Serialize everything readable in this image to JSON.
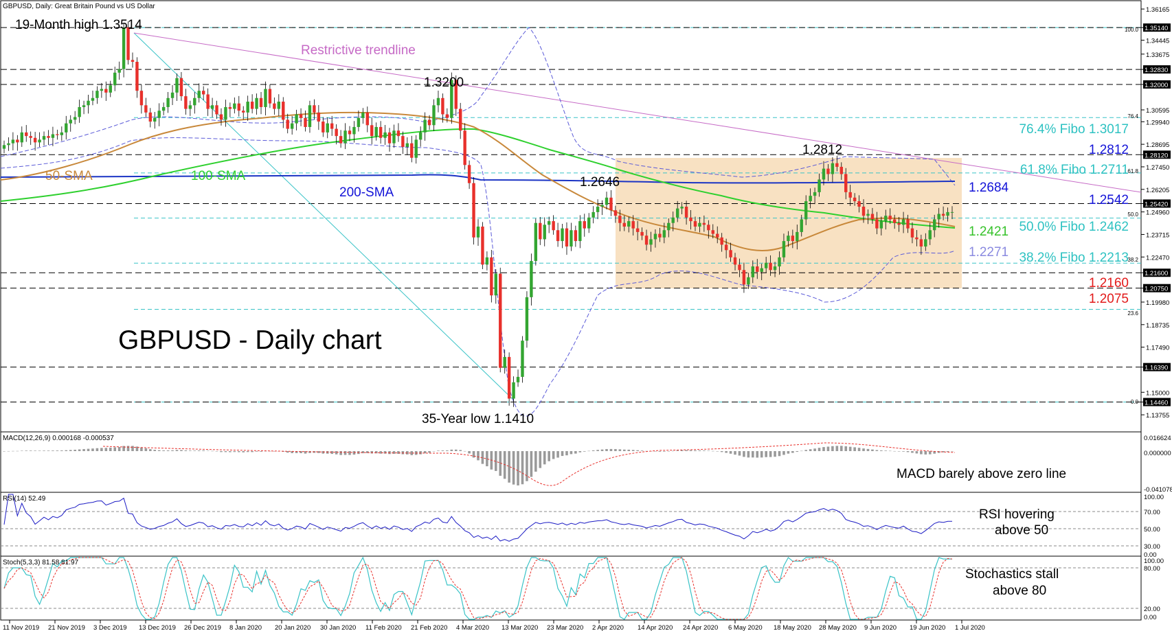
{
  "header": {
    "symbol_title": "GBPUSD, Daily:  Great Britain Pound vs US Dollar"
  },
  "main_title": "GBPUSD - Daily chart",
  "annotations": {
    "high": "19-Month high 1.3514",
    "low": "35-Year low 1.1410",
    "trendline": "Restrictive trendline",
    "peak_1320": "1.3200",
    "peak_12812": "1.2812",
    "peak_12646": "1.2646",
    "sma50": "50-SMA",
    "sma100": "100-SMA",
    "sma200": "200-SMA"
  },
  "right_labels": {
    "fib764": "76.4% Fibo 1.3017",
    "lvl12812": "1.2812",
    "fib618": "61.8% Fibo 1.2711",
    "lvl12684": "1.2684",
    "lvl12542": "1.2542",
    "lvl12421": "1.2421",
    "fib50": "50.0% Fibo 1.2462",
    "lvl12271": "1.2271",
    "fib382": "38.2% Fibo 1.2213",
    "lvl12160": "1.2160",
    "lvl12075": "1.2075"
  },
  "fib_small": {
    "f100": "100.0",
    "f764": "76.4",
    "f618": "61.8",
    "f50": "50.0",
    "f382": "38.2",
    "f236": "23.6",
    "f0": "0.0"
  },
  "price_axis": {
    "ticks": [
      "1.36165",
      "1.35140",
      "1.34445",
      "1.33675",
      "1.32830",
      "1.32000",
      "1.30595",
      "1.29940",
      "1.28695",
      "1.28120",
      "1.27450",
      "1.26205",
      "1.25420",
      "1.24960",
      "1.23715",
      "1.22470",
      "1.21600",
      "1.20750",
      "1.19980",
      "1.18735",
      "1.17490",
      "1.16390",
      "1.15000",
      "1.14460",
      "1.13755"
    ],
    "highlighted": [
      "1.35140",
      "1.32830",
      "1.32000",
      "1.28120",
      "1.25420",
      "1.21600",
      "1.20750",
      "1.16390",
      "1.14460"
    ]
  },
  "macd": {
    "header": "MACD(12,26,9) 0.000168 -0.000537",
    "axis_top": "0.016624",
    "axis_zero": "0.000000",
    "axis_bottom": "-0.041078",
    "note": "MACD barely above zero line"
  },
  "rsi": {
    "header": "RSI(14) 52.49",
    "axis": [
      "100.00",
      "70.00",
      "50.00",
      "30.00",
      "0.00"
    ],
    "note1": "RSI hovering",
    "note2": "above 50"
  },
  "stoch": {
    "header": "Stoch(5,3,3) 81.58 81.97",
    "axis": [
      "100.00",
      "80.00",
      "20.00",
      "0.00"
    ],
    "note1": "Stochastics stall",
    "note2": "above 80"
  },
  "date_axis": [
    "11 Nov 2019",
    "21 Nov 2019",
    "3 Dec 2019",
    "13 Dec 2019",
    "26 Dec 2019",
    "8 Jan 2020",
    "20 Jan 2020",
    "30 Jan 2020",
    "11 Feb 2020",
    "21 Feb 2020",
    "4 Mar 2020",
    "13 Mar 2020",
    "23 Mar 2020",
    "2 Apr 2020",
    "14 Apr 2020",
    "24 Apr 2020",
    "6 May 2020",
    "18 May 2020",
    "28 May 2020",
    "9 Jun 2020",
    "19 Jun 2020",
    "1 Jul 2020"
  ],
  "colors": {
    "up": "#33a531",
    "down": "#e8302b",
    "sma50": "#c8883a",
    "sma100": "#2ed02e",
    "sma200": "#1a33c4",
    "bollinger": "#5a5ad8",
    "trendline": "#c66ac6",
    "fib": "#39c3c7",
    "range_box": "#f6d7ad",
    "label_blue": "#1313d8",
    "label_red": "#e21a1a",
    "label_green": "#36c22a",
    "label_purple": "#8a8ae0",
    "label_cyan": "#2ec2c2"
  },
  "chart_data": {
    "type": "candlestick",
    "title": "GBPUSD, Daily:  Great Britain Pound vs US Dollar",
    "x_start": "11 Nov 2019",
    "x_end": "7 Jul 2020",
    "ylim": [
      1.1376,
      1.3617
    ],
    "horizontal_levels": [
      1.3514,
      1.3283,
      1.32,
      1.2812,
      1.2542,
      1.216,
      1.2075,
      1.1639,
      1.1446
    ],
    "fibonacci": {
      "0.0": 1.1446,
      "23.6": 1.1958,
      "38.2": 1.2213,
      "50.0": 1.2462,
      "61.8": 1.2711,
      "76.4": 1.3017,
      "100.0": 1.3514
    },
    "key_points": {
      "19_month_high": 1.3514,
      "35_year_low": 1.141,
      "peak_mar": 1.32,
      "peak_apr": 1.2646,
      "peak_jun": 1.2812
    },
    "range_box": {
      "from": "14 Apr 2020",
      "to": "7 Jul 2020",
      "top": 1.2812,
      "bottom": 1.2075
    },
    "indicator_levels": {
      "200_sma": 1.2684,
      "100_sma": 1.2421,
      "upper_band": 1.2542,
      "lower_band": 1.2271
    },
    "close_series": [
      1.2865,
      1.2875,
      1.2895,
      1.288,
      1.2935,
      1.2915,
      1.2905,
      1.288,
      1.2895,
      1.2915,
      1.2905,
      1.2925,
      1.292,
      1.2935,
      1.2985,
      1.3005,
      1.302,
      1.3075,
      1.3085,
      1.311,
      1.3125,
      1.3165,
      1.3175,
      1.3155,
      1.3195,
      1.3265,
      1.3285,
      1.3515,
      1.3335,
      1.3325,
      1.3165,
      1.3085,
      1.3045,
      1.2995,
      1.3015,
      1.3055,
      1.3075,
      1.3125,
      1.3155,
      1.3235,
      1.3135,
      1.3065,
      1.3085,
      1.3125,
      1.3165,
      1.3145,
      1.3065,
      1.3085,
      1.3035,
      1.3005,
      1.3075,
      1.3065,
      1.3095,
      1.3055,
      1.3045,
      1.3105,
      1.3065,
      1.3125,
      1.3075,
      1.3175,
      1.3095,
      1.3065,
      1.3105,
      1.3005,
      1.2955,
      1.2985,
      1.3035,
      1.3015,
      1.2965,
      1.3085,
      1.3045,
      1.2995,
      1.2935,
      1.2985,
      1.2955,
      1.2915,
      1.2875,
      1.2945,
      1.2925,
      1.2965,
      1.3015,
      1.3045,
      1.2975,
      1.2915,
      1.2965,
      1.2905,
      1.2935,
      1.2875,
      1.2945,
      1.2915,
      1.2855,
      1.2875,
      1.2795,
      1.2895,
      1.2935,
      1.3005,
      1.2975,
      1.3085,
      1.3125,
      1.3035,
      1.3015,
      1.3225,
      1.3065,
      1.2945,
      1.2755,
      1.2655,
      1.2355,
      1.2415,
      1.2205,
      1.2245,
      1.2035,
      1.2155,
      1.1635,
      1.1695,
      1.1465,
      1.1555,
      1.1585,
      1.1785,
      1.2025,
      1.2225,
      1.2435,
      1.2345,
      1.2425,
      1.2445,
      1.2395,
      1.2335,
      1.2405,
      1.2305,
      1.2395,
      1.2335,
      1.2445,
      1.2405,
      1.2465,
      1.2495,
      1.2525,
      1.2535,
      1.2575,
      1.2505,
      1.2475,
      1.2435,
      1.2415,
      1.2445,
      1.2405,
      1.2385,
      1.2365,
      1.2315,
      1.2345,
      1.2375,
      1.2355,
      1.2395,
      1.2435,
      1.2465,
      1.2515,
      1.2525,
      1.2465,
      1.2445,
      1.2415,
      1.2435,
      1.2425,
      1.2395,
      1.2375,
      1.2355,
      1.2315,
      1.2285,
      1.2245,
      1.2205,
      1.2175,
      1.2095,
      1.2135,
      1.2195,
      1.2165,
      1.2185,
      1.2215,
      1.2175,
      1.2195,
      1.2245,
      1.2335,
      1.2365,
      1.2335,
      1.2385,
      1.2455,
      1.2555,
      1.2585,
      1.2605,
      1.2675,
      1.2735,
      1.2705,
      1.2765,
      1.2745,
      1.2705,
      1.2605,
      1.2575,
      1.2555,
      1.2525,
      1.2475,
      1.2485,
      1.2455,
      1.2405,
      1.2445,
      1.2475,
      1.2455,
      1.2435,
      1.2425,
      1.2455,
      1.2405,
      1.2355,
      1.2345,
      1.2305,
      1.2345,
      1.2395,
      1.2455,
      1.2485,
      1.2475,
      1.2495,
      1.2495
    ]
  }
}
